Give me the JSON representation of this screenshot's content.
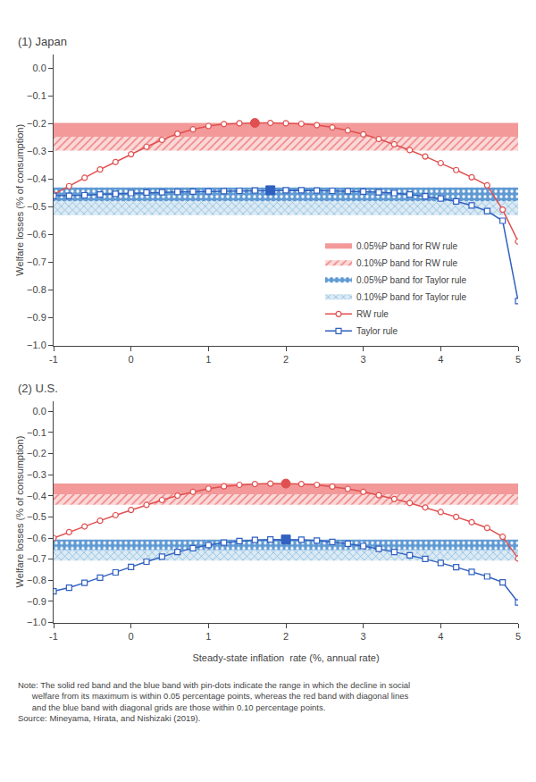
{
  "chart_data": [
    {
      "type": "line",
      "title": "(1) Japan",
      "ylabel": "Welfare losses (% of consumption)",
      "x": [
        -1.0,
        -0.8,
        -0.6,
        -0.4,
        -0.2,
        0.0,
        0.2,
        0.4,
        0.6,
        0.8,
        1.0,
        1.2,
        1.4,
        1.6,
        1.8,
        2.0,
        2.2,
        2.4,
        2.6,
        2.8,
        3.0,
        3.2,
        3.4,
        3.6,
        3.8,
        4.0,
        4.2,
        4.4,
        4.6,
        4.8,
        5.0
      ],
      "xlim": [
        -1.0,
        5.0
      ],
      "ylim": [
        -1.0,
        0.05
      ],
      "xticks": [
        -1,
        0,
        1,
        2,
        3,
        4,
        5
      ],
      "yticks": [
        {
          "value": 0.0,
          "label": "0.0"
        },
        {
          "value": -0.1,
          "label": "−0.1"
        },
        {
          "value": -0.2,
          "label": "−0.2"
        },
        {
          "value": -0.3,
          "label": "−0.3"
        },
        {
          "value": -0.4,
          "label": "−0.4"
        },
        {
          "value": -0.5,
          "label": "−0.5"
        },
        {
          "value": -0.6,
          "label": "−0.6"
        },
        {
          "value": -0.7,
          "label": "−0.7"
        },
        {
          "value": -0.8,
          "label": "−0.8"
        },
        {
          "value": -0.9,
          "label": "−0.9"
        },
        {
          "value": -1.0,
          "label": "−1.0"
        }
      ],
      "grid": false,
      "legend": "lower right",
      "series": [
        {
          "name": "0.05%P band for RW rule",
          "type": "band",
          "color": "#f08080",
          "band": [
            -0.197,
            -0.247
          ]
        },
        {
          "name": "0.10%P band for RW rule",
          "type": "band",
          "color": "#f08080",
          "band": [
            -0.247,
            -0.297
          ]
        },
        {
          "name": "0.05%P band for Taylor rule",
          "type": "band",
          "color": "#4488cc",
          "band": [
            -0.43,
            -0.48
          ]
        },
        {
          "name": "0.10%P band for Taylor rule",
          "type": "band",
          "color": "#88bbdd",
          "band": [
            -0.48,
            -0.53
          ]
        },
        {
          "name": "RW rule",
          "type": "line",
          "color": "#e05050",
          "marker": "circle",
          "values": [
            -0.455,
            -0.425,
            -0.395,
            -0.365,
            -0.338,
            -0.31,
            -0.283,
            -0.258,
            -0.236,
            -0.22,
            -0.208,
            -0.201,
            -0.198,
            -0.197,
            -0.197,
            -0.198,
            -0.2,
            -0.205,
            -0.213,
            -0.224,
            -0.238,
            -0.255,
            -0.274,
            -0.295,
            -0.318,
            -0.342,
            -0.367,
            -0.393,
            -0.422,
            -0.51,
            -0.625
          ],
          "optimum": {
            "x": 1.6,
            "y": -0.197
          }
        },
        {
          "name": "Taylor rule",
          "type": "line",
          "color": "#3060c0",
          "marker": "square",
          "values": [
            -0.46,
            -0.46,
            -0.458,
            -0.455,
            -0.453,
            -0.45,
            -0.448,
            -0.447,
            -0.446,
            -0.445,
            -0.444,
            -0.443,
            -0.442,
            -0.441,
            -0.44,
            -0.44,
            -0.44,
            -0.441,
            -0.442,
            -0.443,
            -0.445,
            -0.447,
            -0.45,
            -0.455,
            -0.462,
            -0.47,
            -0.48,
            -0.495,
            -0.515,
            -0.55,
            -0.84
          ],
          "optimum": {
            "x": 1.8,
            "y": -0.44
          }
        }
      ]
    },
    {
      "type": "line",
      "title": "(2) U.S.",
      "xlabel": "Steady-state inflation  rate (%, annual rate)",
      "ylabel": "Welfare losses (% of consumption)",
      "x": [
        -1.0,
        -0.8,
        -0.6,
        -0.4,
        -0.2,
        0.0,
        0.2,
        0.4,
        0.6,
        0.8,
        1.0,
        1.2,
        1.4,
        1.6,
        1.8,
        2.0,
        2.2,
        2.4,
        2.6,
        2.8,
        3.0,
        3.2,
        3.4,
        3.6,
        3.8,
        4.0,
        4.2,
        4.4,
        4.6,
        4.8,
        5.0
      ],
      "xlim": [
        -1.0,
        5.0
      ],
      "ylim": [
        -1.0,
        0.05
      ],
      "xticks": [
        -1,
        0,
        1,
        2,
        3,
        4,
        5
      ],
      "yticks": [
        {
          "value": 0.0,
          "label": "0.0"
        },
        {
          "value": -0.1,
          "label": "−0.1"
        },
        {
          "value": -0.2,
          "label": "−0.2"
        },
        {
          "value": -0.3,
          "label": "−0.3"
        },
        {
          "value": -0.4,
          "label": "−0.4"
        },
        {
          "value": -0.5,
          "label": "−0.5"
        },
        {
          "value": -0.6,
          "label": "−0.6"
        },
        {
          "value": -0.7,
          "label": "−0.7"
        },
        {
          "value": -0.8,
          "label": "−0.8"
        },
        {
          "value": -0.9,
          "label": "−0.9"
        },
        {
          "value": -1.0,
          "label": "−1.0"
        }
      ],
      "grid": false,
      "series": [
        {
          "name": "0.05%P band for RW rule",
          "type": "band",
          "color": "#f08080",
          "band": [
            -0.342,
            -0.392
          ]
        },
        {
          "name": "0.10%P band for RW rule",
          "type": "band",
          "color": "#f08080",
          "band": [
            -0.392,
            -0.442
          ]
        },
        {
          "name": "0.05%P band for Taylor rule",
          "type": "band",
          "color": "#4488cc",
          "band": [
            -0.607,
            -0.657
          ]
        },
        {
          "name": "0.10%P band for Taylor rule",
          "type": "band",
          "color": "#88bbdd",
          "band": [
            -0.657,
            -0.707
          ]
        },
        {
          "name": "RW rule",
          "type": "line",
          "color": "#e05050",
          "marker": "circle",
          "values": [
            -0.6,
            -0.572,
            -0.545,
            -0.518,
            -0.492,
            -0.467,
            -0.443,
            -0.42,
            -0.399,
            -0.381,
            -0.366,
            -0.355,
            -0.348,
            -0.344,
            -0.342,
            -0.342,
            -0.344,
            -0.348,
            -0.356,
            -0.367,
            -0.381,
            -0.397,
            -0.415,
            -0.434,
            -0.455,
            -0.477,
            -0.5,
            -0.525,
            -0.552,
            -0.594,
            -0.697
          ],
          "optimum": {
            "x": 2.0,
            "y": -0.342
          }
        },
        {
          "name": "Taylor rule",
          "type": "line",
          "color": "#3060c0",
          "marker": "square",
          "values": [
            -0.852,
            -0.835,
            -0.812,
            -0.788,
            -0.763,
            -0.737,
            -0.712,
            -0.688,
            -0.666,
            -0.648,
            -0.633,
            -0.622,
            -0.614,
            -0.609,
            -0.607,
            -0.607,
            -0.608,
            -0.612,
            -0.618,
            -0.627,
            -0.638,
            -0.651,
            -0.666,
            -0.682,
            -0.699,
            -0.718,
            -0.738,
            -0.76,
            -0.782,
            -0.81,
            -0.905
          ],
          "optimum": {
            "x": 2.0,
            "y": -0.607
          }
        }
      ],
      "annotations": [
        "Note: The solid red band and the blue band with pin-dots indicate the range in which the decline in social",
        "      welfare from its maximum is within 0.05 percentage points, whereas the red band with diagonal lines",
        "      and the blue band with diagonal grids are those within 0.10 percentage points.",
        "Source: Mineyama, Hirata, and Nishizaki (2019)."
      ]
    }
  ]
}
